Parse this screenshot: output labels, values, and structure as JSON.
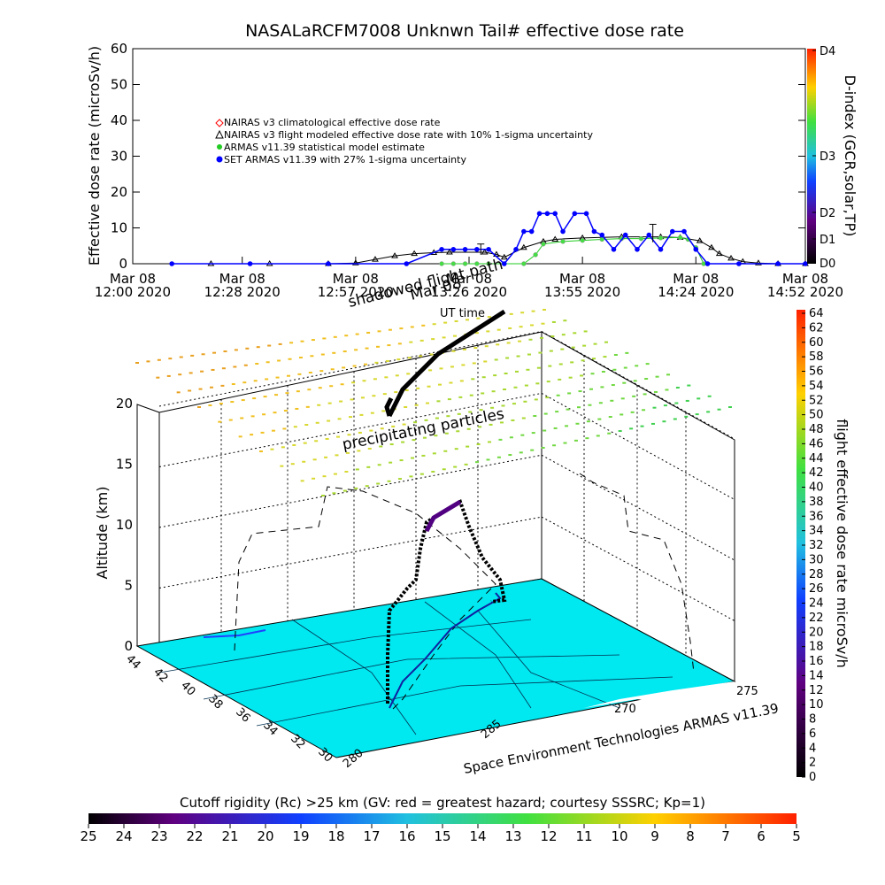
{
  "chart_data": [
    {
      "type": "scatter",
      "title": "NASALaRCFM7008  Unknwn Tail#  effective dose rate",
      "ylabel": "Effective dose rate (microSv/h)",
      "ylim": [
        0,
        60
      ],
      "yticks": [
        0,
        10,
        20,
        30,
        40,
        50,
        60
      ],
      "xlim": [
        "2020-03-08 12:00",
        "2020-03-08 14:52"
      ],
      "xticks": [
        {
          "t": "2020-03-08 12:00",
          "line1": "Mar 08",
          "line2": "12:00 2020"
        },
        {
          "t": "2020-03-08 12:28",
          "line1": "Mar 08",
          "line2": "12:28 2020"
        },
        {
          "t": "2020-03-08 12:57",
          "line1": "Mar 08",
          "line2": "12:57 2020"
        },
        {
          "t": "2020-03-08 13:26",
          "line1": "Mar 08",
          "line2": "13:26 2020"
        },
        {
          "t": "2020-03-08 13:55",
          "line1": "Mar 08",
          "line2": "13:55 2020"
        },
        {
          "t": "2020-03-08 14:24",
          "line1": "Mar 08",
          "line2": "14:24 2020"
        },
        {
          "t": "2020-03-08 14:52",
          "line1": "Mar 08",
          "line2": "14:52 2020"
        }
      ],
      "legend": [
        {
          "label": "NAIRAS v3 climatological effective dose rate",
          "color": "#ff0000",
          "marker": "diamond"
        },
        {
          "label": "NAIRAS v3 flight modeled effective dose rate with 10% 1-sigma uncertainty",
          "color": "#000000",
          "marker": "triangle"
        },
        {
          "label": "ARMAS v11.39 statistical model estimate",
          "color": "#22cc22",
          "marker": "asterisk"
        },
        {
          "label": "SET ARMAS v11.39 with 27% 1-sigma uncertainty",
          "color": "#0000ff",
          "marker": "dot"
        }
      ],
      "series": [
        {
          "name": "NAIRAS v3 flight modeled effective dose rate with 10% 1-sigma uncertainty",
          "color": "#000000",
          "x": [
            "12:20",
            "12:35",
            "12:50",
            "12:57",
            "13:02",
            "13:07",
            "13:12",
            "13:17",
            "13:21",
            "13:30",
            "13:33",
            "13:35",
            "13:40",
            "13:45",
            "13:48",
            "13:55",
            "14:05",
            "14:15",
            "14:20",
            "14:25",
            "14:28",
            "14:30",
            "14:33",
            "14:36",
            "14:40",
            "14:45",
            "14:52"
          ],
          "y": [
            0,
            0,
            0,
            0.2,
            1.2,
            2.2,
            2.8,
            3.1,
            3.2,
            3.2,
            2.6,
            1.8,
            4.5,
            6.2,
            6.8,
            7.2,
            7.5,
            7.5,
            7.3,
            6.4,
            4.5,
            2.8,
            1.5,
            0.6,
            0.2,
            0,
            0
          ]
        },
        {
          "name": "ARMAS v11.39 statistical model estimate",
          "color": "#22cc22",
          "x": [
            "13:19",
            "13:22",
            "13:25",
            "13:28",
            "13:31",
            "13:40",
            "13:43",
            "13:45",
            "13:50",
            "13:55",
            "14:00",
            "14:05",
            "14:10",
            "14:15",
            "14:20",
            "14:22",
            "14:24",
            "14:26"
          ],
          "y": [
            0,
            0,
            0,
            0,
            0,
            0,
            2.5,
            5.5,
            6.2,
            6.5,
            6.8,
            7,
            7,
            7.2,
            7.3,
            6.8,
            4.5,
            0
          ]
        },
        {
          "name": "SET ARMAS v11.39 with 27% 1-sigma uncertainty",
          "color": "#0000ff",
          "x": [
            "12:10",
            "12:30",
            "12:50",
            "13:10",
            "13:19",
            "13:22",
            "13:25",
            "13:28",
            "13:31",
            "13:35",
            "13:38",
            "13:40",
            "13:42",
            "13:44",
            "13:46",
            "13:48",
            "13:50",
            "13:53",
            "13:56",
            "13:58",
            "14:00",
            "14:03",
            "14:06",
            "14:09",
            "14:12",
            "14:15",
            "14:18",
            "14:21",
            "14:24",
            "14:27",
            "14:35",
            "14:45",
            "14:52"
          ],
          "y": [
            0,
            0,
            0,
            0,
            4,
            4,
            4,
            4,
            4,
            0,
            4,
            9,
            9,
            14,
            14,
            14,
            9,
            14,
            14,
            9,
            8,
            4,
            8,
            4,
            8,
            4,
            9,
            9,
            4,
            0,
            0,
            0,
            0
          ]
        }
      ]
    },
    {
      "type": "3d-flight-track",
      "zlabel": "Altitude (km)",
      "zticks": [
        0,
        5,
        10,
        15,
        20
      ],
      "lat_ticks": [
        "44",
        "42",
        "40",
        "38",
        "36",
        "34",
        "32",
        "30"
      ],
      "lon_ticks": [
        "280",
        "270",
        "275",
        "285"
      ],
      "annotations": [
        "shadowed flight path",
        "Mar 08",
        "UT time",
        "precipitating particles"
      ],
      "credit": "Space Environment Technologies ARMAS v11.39",
      "track_altitude_km": [
        0.5,
        3,
        6,
        9,
        11.5,
        12,
        10,
        7,
        5,
        4
      ],
      "track_dose_microSv_h": [
        1,
        2,
        3,
        4,
        8,
        9,
        6,
        3,
        2,
        1
      ]
    }
  ],
  "dindex_bar": {
    "label": "D-index (GCR,solar,TP)",
    "ticks": [
      "D4",
      "D3",
      "D2",
      "D1",
      "D0"
    ],
    "colors": [
      "#ff2000",
      "#ffd000",
      "#40e040",
      "#20c0e0",
      "#1040ff",
      "#600080",
      "#000000"
    ]
  },
  "dose_colorbar": {
    "label": "flight effective dose rate microSv/h",
    "ticks": [
      "64",
      "62",
      "60",
      "58",
      "56",
      "54",
      "52",
      "50",
      "48",
      "46",
      "44",
      "42",
      "40",
      "38",
      "36",
      "34",
      "32",
      "30",
      "28",
      "26",
      "24",
      "22",
      "20",
      "18",
      "16",
      "14",
      "12",
      "10",
      "8",
      "6",
      "4",
      "2",
      "0"
    ],
    "colors": [
      "#ff2000",
      "#ffd000",
      "#40e040",
      "#20c0e0",
      "#1040ff",
      "#600080",
      "#000000"
    ]
  },
  "cutoff_bar": {
    "label": "Cutoff rigidity (Rc) >25 km (GV: red = greatest hazard; courtesy SSSRC; Kp=1)",
    "ticks": [
      "25",
      "24",
      "23",
      "22",
      "21",
      "20",
      "19",
      "18",
      "17",
      "16",
      "15",
      "14",
      "13",
      "12",
      "11",
      "10",
      "9",
      "8",
      "7",
      "6",
      "5"
    ],
    "colors": [
      "#000000",
      "#600080",
      "#1040ff",
      "#20c0e0",
      "#40e040",
      "#ffd000",
      "#ff2000"
    ]
  }
}
